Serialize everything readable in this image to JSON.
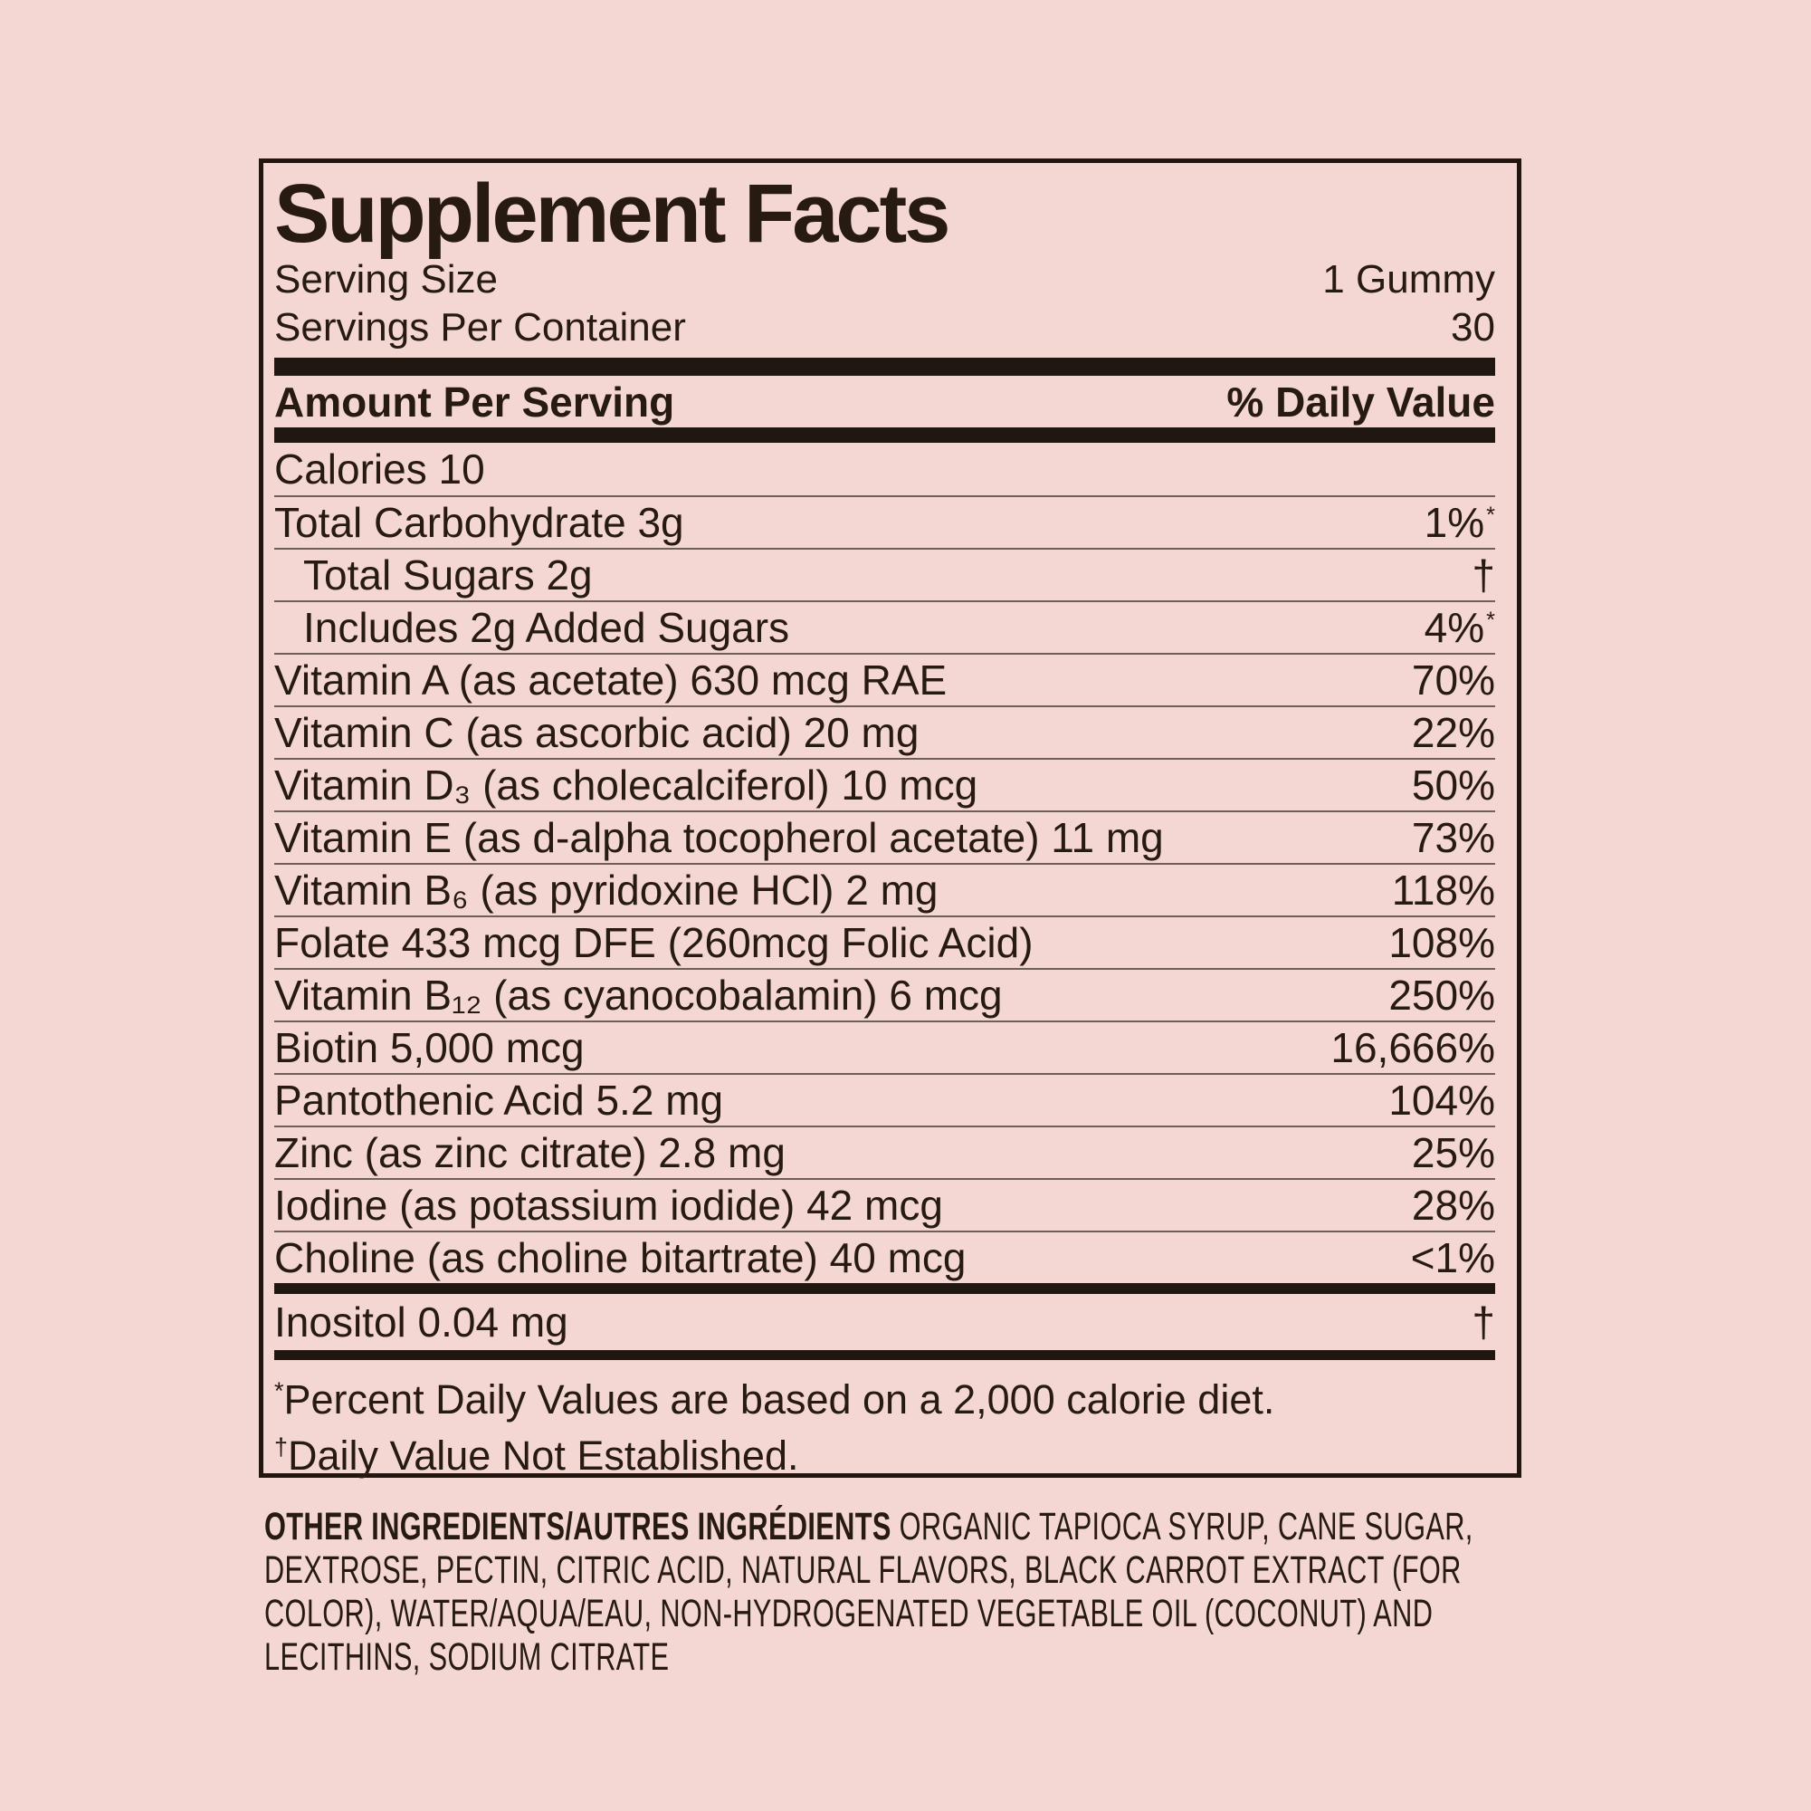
{
  "colors": {
    "background": "#F4D7D3",
    "ink": "#261A12",
    "thick_bar": "#201710",
    "hairline": "#6E5F59"
  },
  "label": {
    "title": "Supplement Facts",
    "serving_size_label": "Serving Size",
    "serving_size_value": "1 Gummy",
    "servings_per_container_label": "Servings Per Container",
    "servings_per_container_value": "30",
    "amount_per_serving_header": "Amount Per Serving",
    "daily_value_header": "% Daily Value",
    "rows": [
      {
        "name": "Calories 10",
        "dv": ""
      },
      {
        "name": "Total Carbohydrate 3g",
        "dv": "1%",
        "sup": "*"
      },
      {
        "name": "Total Sugars 2g",
        "dv": "†",
        "indent": true
      },
      {
        "name": "Includes 2g Added Sugars",
        "dv": "4%",
        "sup": "*",
        "indent": true
      },
      {
        "name": "Vitamin A (as acetate) 630 mcg RAE",
        "dv": "70%"
      },
      {
        "name": "Vitamin C (as ascorbic acid) 20 mg",
        "dv": "22%"
      },
      {
        "name": "Vitamin D₃ (as cholecalciferol) 10 mcg",
        "dv": "50%"
      },
      {
        "name": "Vitamin E (as d-alpha tocopherol acetate) 11 mg",
        "dv": "73%"
      },
      {
        "name": "Vitamin B₆ (as pyridoxine HCl) 2 mg",
        "dv": "118%"
      },
      {
        "name": "Folate 433 mcg DFE (260mcg Folic Acid)",
        "dv": "108%"
      },
      {
        "name": "Vitamin B₁₂ (as cyanocobalamin) 6 mcg",
        "dv": "250%"
      },
      {
        "name": "Biotin 5,000 mcg",
        "dv": "16,666%"
      },
      {
        "name": "Pantothenic Acid 5.2 mg",
        "dv": "104%"
      },
      {
        "name": "Zinc (as zinc citrate) 2.8 mg",
        "dv": "25%"
      },
      {
        "name": "Iodine (as potassium iodide) 42 mcg",
        "dv": "28%"
      },
      {
        "name": "Choline (as choline bitartrate) 40 mcg",
        "dv": "<1%"
      }
    ],
    "extra_rows": [
      {
        "name": "Inositol 0.04 mg",
        "dv": "†"
      }
    ],
    "footnotes": [
      {
        "sup": "*",
        "text": "Percent Daily Values are based on a 2,000 calorie diet."
      },
      {
        "sup": "†",
        "text": "Daily Value Not Established."
      }
    ]
  },
  "other_ingredients": {
    "heading": "OTHER INGREDIENTS/AUTRES INGRÉDIENTS",
    "text": "ORGANIC TAPIOCA SYRUP, CANE SUGAR, DEXTROSE, PECTIN, CITRIC ACID, NATURAL FLAVORS, BLACK CARROT EXTRACT (FOR COLOR), WATER/AQUA/EAU, NON-HYDROGENATED VEGETABLE OIL (COCONUT) AND LECITHINS, SODIUM CITRATE"
  }
}
